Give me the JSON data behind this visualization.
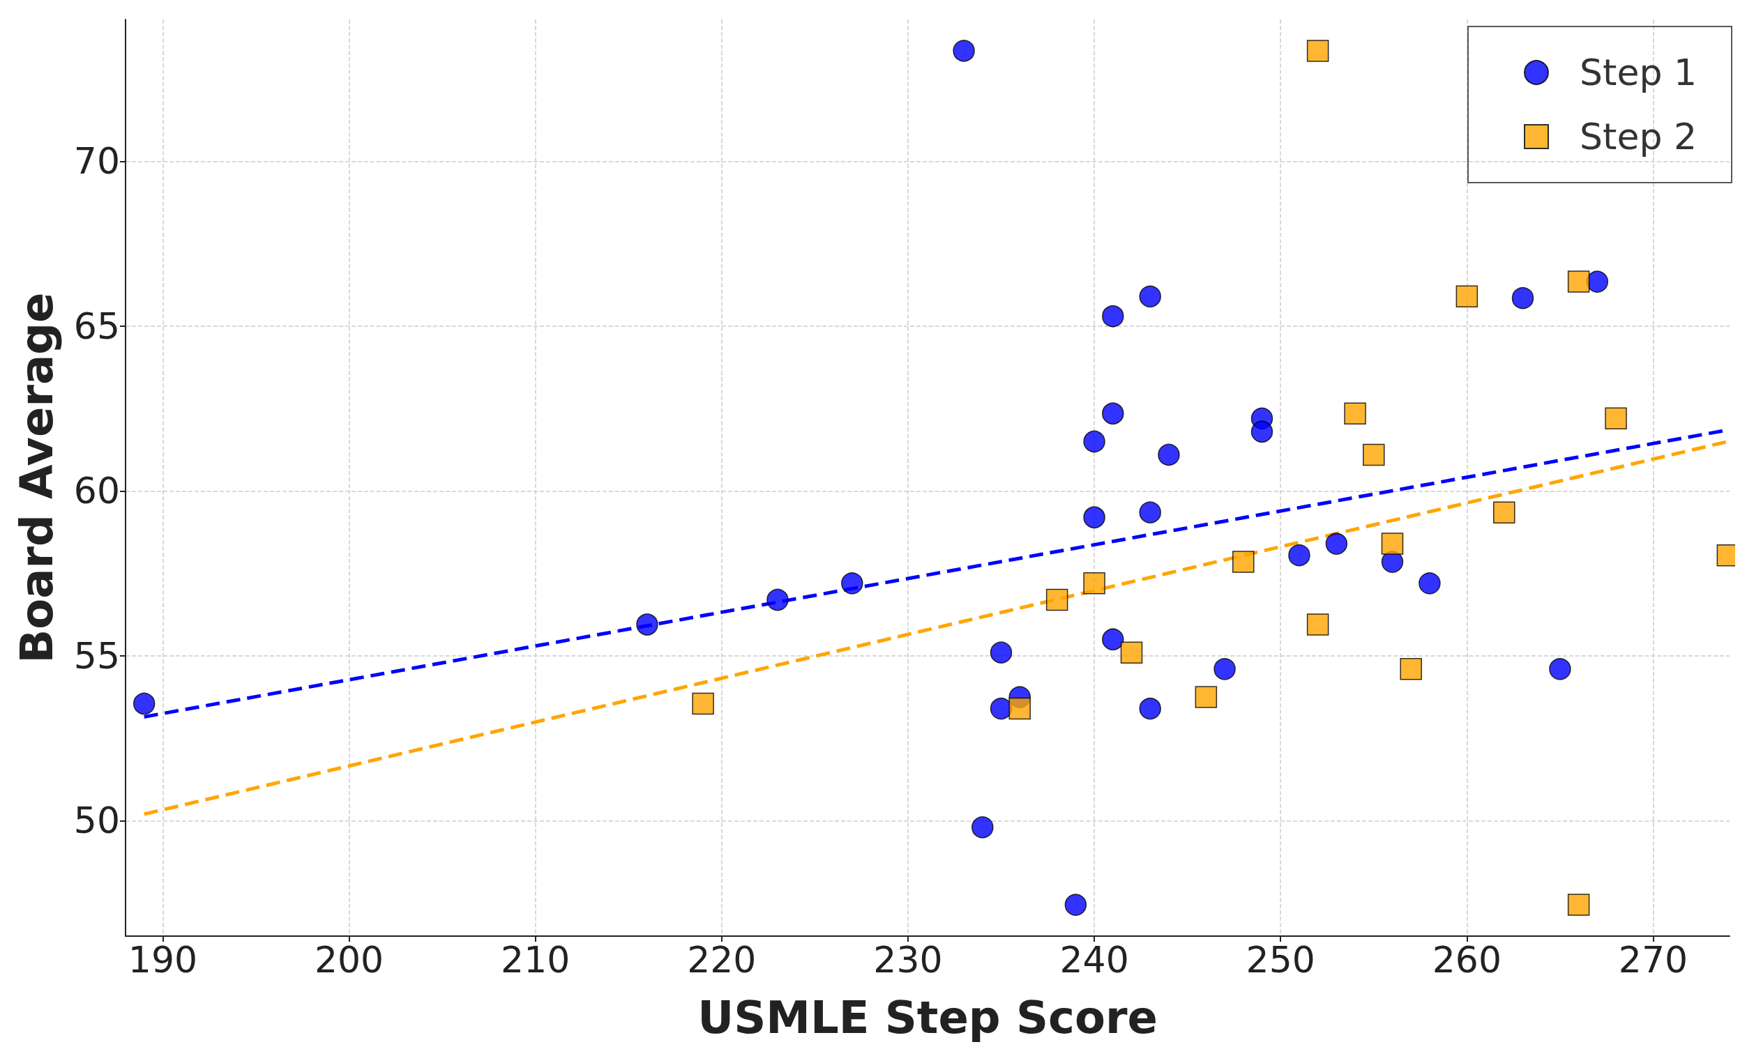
{
  "chart_data": {
    "type": "scatter",
    "xlabel": "USMLE Step Score",
    "ylabel": "Board Average",
    "xlim": [
      188,
      274.1
    ],
    "ylim": [
      46.5,
      74.3
    ],
    "xticks": [
      190,
      200,
      210,
      220,
      230,
      240,
      250,
      260,
      270
    ],
    "yticks": [
      50,
      55,
      60,
      65,
      70
    ],
    "grid": true,
    "legend": "top right",
    "series": [
      {
        "name": "Step 1",
        "color": "#0000ff",
        "marker": "circle",
        "x": [
          189,
          216,
          223,
          227,
          233,
          234,
          235,
          235,
          236,
          239,
          240,
          240,
          241,
          241,
          241,
          243,
          243,
          243,
          244,
          247,
          249,
          249,
          251,
          253,
          256,
          258,
          263,
          265,
          267
        ],
        "values": [
          53.55,
          55.95,
          56.7,
          57.2,
          73.35,
          49.8,
          55.1,
          53.4,
          53.75,
          47.45,
          61.5,
          59.2,
          65.3,
          62.35,
          55.5,
          65.9,
          59.35,
          53.4,
          61.1,
          54.6,
          62.2,
          61.8,
          58.05,
          58.4,
          57.85,
          57.2,
          65.85,
          54.6,
          66.35
        ]
      },
      {
        "name": "Step 2",
        "color": "#ffa500",
        "marker": "square",
        "x": [
          219,
          236,
          238,
          240,
          242,
          246,
          248,
          252,
          252,
          254,
          255,
          256,
          257,
          260,
          262,
          266,
          266,
          268,
          274
        ],
        "values": [
          53.55,
          53.4,
          56.7,
          57.2,
          55.1,
          53.75,
          57.85,
          73.35,
          55.95,
          62.35,
          61.1,
          58.4,
          54.6,
          65.9,
          59.35,
          66.35,
          47.45,
          62.2,
          58.05
        ]
      },
      {
        "type": "line",
        "color": "#0000ff",
        "line_style": "dashed",
        "x": [
          189,
          274
        ],
        "values": [
          53.15,
          61.85
        ]
      },
      {
        "type": "line",
        "color": "#ffa500",
        "line_style": "dashed",
        "x": [
          189,
          274
        ],
        "values": [
          50.2,
          61.5
        ]
      }
    ]
  }
}
